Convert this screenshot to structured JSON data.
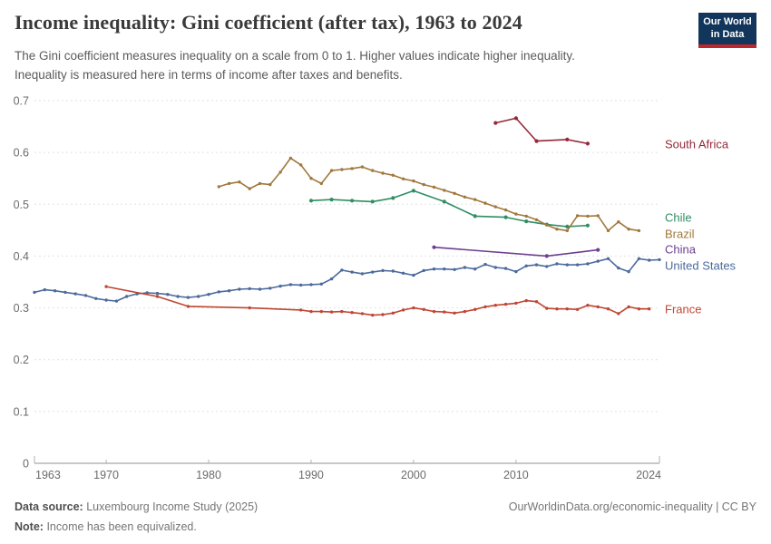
{
  "header": {
    "title": "Income inequality: Gini coefficient (after tax), 1963 to 2024",
    "subtitle": "The Gini coefficient measures inequality on a scale from 0 to 1. Higher values indicate higher inequality. Inequality is measured here in terms of income after taxes and benefits.",
    "logo": {
      "line1": "Our World",
      "line2": "in Data",
      "bg": "#12355C",
      "stripe": "#C0272D"
    }
  },
  "chart_data": {
    "type": "line",
    "title": "Income inequality: Gini coefficient (after tax), 1963 to 2024",
    "xlabel": "",
    "ylabel": "",
    "xlim": [
      1963,
      2024
    ],
    "ylim": [
      0,
      0.7
    ],
    "grid": "horizontal-dashed",
    "legend_position": "right-end-labels",
    "xticks": [
      "1963",
      "1970",
      "1980",
      "1990",
      "2000",
      "2010",
      "2024"
    ],
    "yticks": [
      "0",
      "0.1",
      "0.2",
      "0.3",
      "0.4",
      "0.5",
      "0.6",
      "0.7"
    ],
    "series": [
      {
        "name": "Chile",
        "color": "#2F8E63",
        "points": [
          [
            1990,
            0.507
          ],
          [
            1992,
            0.509
          ],
          [
            1994,
            0.507
          ],
          [
            1996,
            0.505
          ],
          [
            1998,
            0.512
          ],
          [
            2000,
            0.526
          ],
          [
            2003,
            0.505
          ],
          [
            2006,
            0.477
          ],
          [
            2009,
            0.475
          ],
          [
            2011,
            0.467
          ],
          [
            2013,
            0.461
          ],
          [
            2015,
            0.457
          ],
          [
            2017,
            0.459
          ]
        ]
      },
      {
        "name": "Brazil",
        "color": "#A0783C",
        "points": [
          [
            1981,
            0.534
          ],
          [
            1982,
            0.54
          ],
          [
            1983,
            0.543
          ],
          [
            1984,
            0.53
          ],
          [
            1985,
            0.54
          ],
          [
            1986,
            0.538
          ],
          [
            1987,
            0.562
          ],
          [
            1988,
            0.589
          ],
          [
            1989,
            0.576
          ],
          [
            1990,
            0.55
          ],
          [
            1991,
            0.54
          ],
          [
            1992,
            0.565
          ],
          [
            1993,
            0.567
          ],
          [
            1994,
            0.569
          ],
          [
            1995,
            0.572
          ],
          [
            1996,
            0.565
          ],
          [
            1997,
            0.56
          ],
          [
            1998,
            0.556
          ],
          [
            1999,
            0.549
          ],
          [
            2000,
            0.545
          ],
          [
            2001,
            0.538
          ],
          [
            2002,
            0.533
          ],
          [
            2003,
            0.527
          ],
          [
            2004,
            0.521
          ],
          [
            2005,
            0.514
          ],
          [
            2006,
            0.509
          ],
          [
            2007,
            0.502
          ],
          [
            2008,
            0.495
          ],
          [
            2009,
            0.489
          ],
          [
            2010,
            0.481
          ],
          [
            2011,
            0.477
          ],
          [
            2012,
            0.47
          ],
          [
            2013,
            0.46
          ],
          [
            2014,
            0.452
          ],
          [
            2015,
            0.449
          ],
          [
            2016,
            0.478
          ],
          [
            2017,
            0.477
          ],
          [
            2018,
            0.478
          ],
          [
            2019,
            0.449
          ],
          [
            2020,
            0.466
          ],
          [
            2021,
            0.452
          ],
          [
            2022,
            0.449
          ]
        ]
      },
      {
        "name": "China",
        "color": "#6D3E91",
        "points": [
          [
            2002,
            0.417
          ],
          [
            2013,
            0.4
          ],
          [
            2018,
            0.412
          ]
        ]
      },
      {
        "name": "United States",
        "color": "#4C6A9C",
        "points": [
          [
            1963,
            0.33
          ],
          [
            1964,
            0.335
          ],
          [
            1965,
            0.333
          ],
          [
            1966,
            0.33
          ],
          [
            1967,
            0.327
          ],
          [
            1968,
            0.324
          ],
          [
            1969,
            0.318
          ],
          [
            1970,
            0.315
          ],
          [
            1971,
            0.313
          ],
          [
            1972,
            0.322
          ],
          [
            1973,
            0.327
          ],
          [
            1974,
            0.329
          ],
          [
            1975,
            0.328
          ],
          [
            1976,
            0.326
          ],
          [
            1977,
            0.322
          ],
          [
            1978,
            0.32
          ],
          [
            1979,
            0.322
          ],
          [
            1980,
            0.326
          ],
          [
            1981,
            0.331
          ],
          [
            1982,
            0.333
          ],
          [
            1983,
            0.336
          ],
          [
            1984,
            0.337
          ],
          [
            1985,
            0.336
          ],
          [
            1986,
            0.338
          ],
          [
            1987,
            0.342
          ],
          [
            1988,
            0.345
          ],
          [
            1989,
            0.344
          ],
          [
            1990,
            0.345
          ],
          [
            1991,
            0.346
          ],
          [
            1992,
            0.356
          ],
          [
            1993,
            0.373
          ],
          [
            1994,
            0.369
          ],
          [
            1995,
            0.366
          ],
          [
            1996,
            0.369
          ],
          [
            1997,
            0.372
          ],
          [
            1998,
            0.371
          ],
          [
            1999,
            0.367
          ],
          [
            2000,
            0.363
          ],
          [
            2001,
            0.372
          ],
          [
            2002,
            0.375
          ],
          [
            2003,
            0.375
          ],
          [
            2004,
            0.374
          ],
          [
            2005,
            0.378
          ],
          [
            2006,
            0.375
          ],
          [
            2007,
            0.384
          ],
          [
            2008,
            0.378
          ],
          [
            2009,
            0.376
          ],
          [
            2010,
            0.37
          ],
          [
            2011,
            0.381
          ],
          [
            2012,
            0.383
          ],
          [
            2013,
            0.38
          ],
          [
            2014,
            0.385
          ],
          [
            2015,
            0.383
          ],
          [
            2016,
            0.383
          ],
          [
            2017,
            0.385
          ],
          [
            2018,
            0.39
          ],
          [
            2019,
            0.395
          ],
          [
            2020,
            0.377
          ],
          [
            2021,
            0.37
          ],
          [
            2022,
            0.395
          ],
          [
            2023,
            0.392
          ],
          [
            2024,
            0.393
          ]
        ]
      },
      {
        "name": "France",
        "color": "#BF4632",
        "points": [
          [
            1970,
            0.341
          ],
          [
            1975,
            0.322
          ],
          [
            1978,
            0.303
          ],
          [
            1984,
            0.3
          ],
          [
            1989,
            0.296
          ],
          [
            1990,
            0.293
          ],
          [
            1991,
            0.293
          ],
          [
            1992,
            0.292
          ],
          [
            1993,
            0.293
          ],
          [
            1994,
            0.291
          ],
          [
            1995,
            0.289
          ],
          [
            1996,
            0.286
          ],
          [
            1997,
            0.287
          ],
          [
            1998,
            0.29
          ],
          [
            1999,
            0.296
          ],
          [
            2000,
            0.3
          ],
          [
            2001,
            0.297
          ],
          [
            2002,
            0.293
          ],
          [
            2003,
            0.292
          ],
          [
            2004,
            0.29
          ],
          [
            2005,
            0.293
          ],
          [
            2006,
            0.297
          ],
          [
            2007,
            0.302
          ],
          [
            2008,
            0.305
          ],
          [
            2009,
            0.307
          ],
          [
            2010,
            0.309
          ],
          [
            2011,
            0.314
          ],
          [
            2012,
            0.312
          ],
          [
            2013,
            0.299
          ],
          [
            2014,
            0.298
          ],
          [
            2015,
            0.298
          ],
          [
            2016,
            0.297
          ],
          [
            2017,
            0.305
          ],
          [
            2018,
            0.302
          ],
          [
            2019,
            0.298
          ],
          [
            2020,
            0.289
          ],
          [
            2021,
            0.302
          ],
          [
            2022,
            0.298
          ],
          [
            2023,
            0.298
          ]
        ]
      },
      {
        "name": "South Africa",
        "color": "#942838",
        "points": [
          [
            2008,
            0.657
          ],
          [
            2010,
            0.666
          ],
          [
            2012,
            0.622
          ],
          [
            2015,
            0.625
          ],
          [
            2017,
            0.617
          ]
        ]
      }
    ]
  },
  "footer": {
    "source_label": "Data source:",
    "source_value": "Luxembourg Income Study (2025)",
    "note_label": "Note:",
    "note_value": "Income has been equivalized.",
    "right_text": "OurWorldinData.org/economic-inequality | CC BY"
  }
}
